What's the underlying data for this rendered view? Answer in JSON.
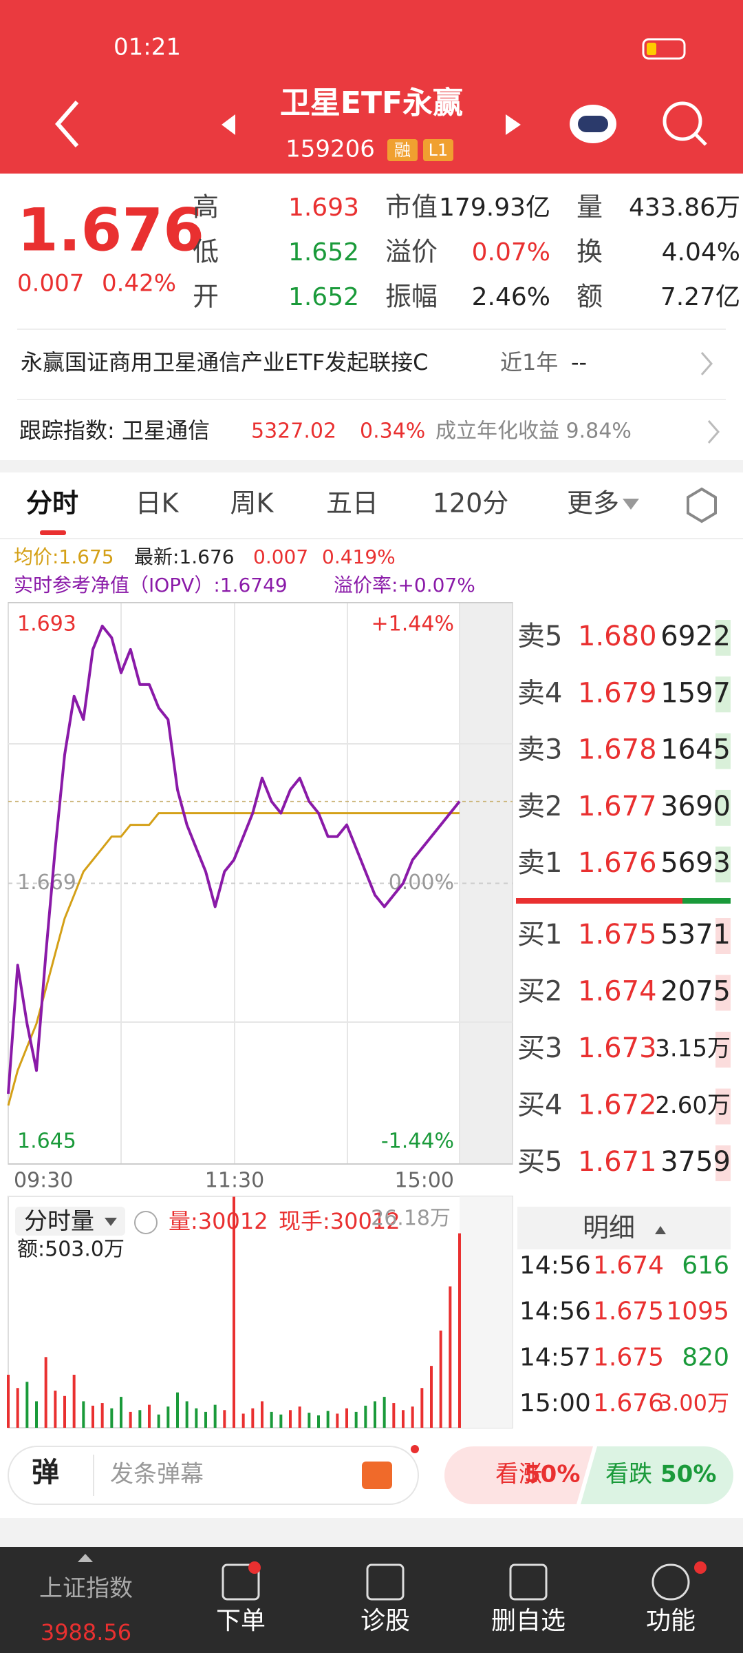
{
  "status": {
    "time": "01:21"
  },
  "header": {
    "title": "卫星ETF永赢",
    "code": "159206",
    "badges": [
      "融",
      "L1"
    ]
  },
  "quote": {
    "price": "1.676",
    "change": "0.007",
    "change_pct": "0.42%",
    "stats": [
      {
        "label": "高",
        "value": "1.693",
        "color": "#e93030"
      },
      {
        "label": "市值",
        "value": "179.93亿",
        "color": "#222222"
      },
      {
        "label": "量",
        "value": "433.86万",
        "color": "#222222"
      },
      {
        "label": "低",
        "value": "1.652",
        "color": "#1a9a3a"
      },
      {
        "label": "溢价",
        "value": "0.07%",
        "color": "#e93030"
      },
      {
        "label": "换",
        "value": "4.04%",
        "color": "#222222"
      },
      {
        "label": "开",
        "value": "1.652",
        "color": "#1a9a3a"
      },
      {
        "label": "振幅",
        "value": "2.46%",
        "color": "#222222"
      },
      {
        "label": "额",
        "value": "7.27亿",
        "color": "#222222"
      }
    ]
  },
  "fund": {
    "name": "永赢国证商用卫星通信产业ETF发起联接C",
    "period": "近1年",
    "value": "--"
  },
  "index": {
    "label": "跟踪指数: 卫星通信",
    "value": "5327.02",
    "pct": "0.34%",
    "note": "成立年化收益 9.84%"
  },
  "tabs": [
    "分时",
    "日K",
    "周K",
    "五日",
    "120分",
    "更多"
  ],
  "legend": {
    "avg": "均价:1.675",
    "latest": "最新:1.676",
    "chg": "0.007",
    "pct": "0.419%",
    "iopv": "实时参考净值（IOPV）:1.6749",
    "premium": "溢价率:+0.07%"
  },
  "chart": {
    "ylim": [
      1.645,
      1.693
    ],
    "yticks": [
      {
        "value": 1.693,
        "label": "1.693"
      },
      {
        "value": 1.669,
        "label": "1.669"
      },
      {
        "value": 1.645,
        "label": "1.645"
      }
    ],
    "pct_labels": [
      "+1.44%",
      "0.00%",
      "-1.44%"
    ],
    "times": [
      "09:30",
      "11:30",
      "15:00"
    ],
    "price": [
      1.651,
      1.662,
      1.657,
      1.653,
      1.663,
      1.672,
      1.68,
      1.685,
      1.683,
      1.689,
      1.691,
      1.69,
      1.687,
      1.689,
      1.686,
      1.686,
      1.684,
      1.683,
      1.677,
      1.674,
      1.672,
      1.67,
      1.667,
      1.67,
      1.671,
      1.673,
      1.675,
      1.678,
      1.676,
      1.675,
      1.677,
      1.678,
      1.676,
      1.675,
      1.673,
      1.673,
      1.674,
      1.672,
      1.67,
      1.668,
      1.667,
      1.668,
      1.669,
      1.671,
      1.672,
      1.673,
      1.674,
      1.675,
      1.676
    ],
    "avg": [
      1.65,
      1.653,
      1.655,
      1.657,
      1.66,
      1.663,
      1.666,
      1.668,
      1.67,
      1.671,
      1.672,
      1.673,
      1.673,
      1.674,
      1.674,
      1.674,
      1.675,
      1.675,
      1.675,
      1.675,
      1.675,
      1.675,
      1.675,
      1.675,
      1.675,
      1.675,
      1.675,
      1.675,
      1.675,
      1.675,
      1.675,
      1.675,
      1.675,
      1.675,
      1.675,
      1.675,
      1.675,
      1.675,
      1.675,
      1.675,
      1.675,
      1.675,
      1.675,
      1.675,
      1.675,
      1.675,
      1.675,
      1.675,
      1.675
    ]
  },
  "order_book": {
    "asks": [
      {
        "label": "卖5",
        "price": "1.680",
        "qty": "6922"
      },
      {
        "label": "卖4",
        "price": "1.679",
        "qty": "1597"
      },
      {
        "label": "卖3",
        "price": "1.678",
        "qty": "1645"
      },
      {
        "label": "卖2",
        "price": "1.677",
        "qty": "3690"
      },
      {
        "label": "卖1",
        "price": "1.676",
        "qty": "5693"
      }
    ],
    "bids": [
      {
        "label": "买1",
        "price": "1.675",
        "qty": "5371"
      },
      {
        "label": "买2",
        "price": "1.674",
        "qty": "2075"
      },
      {
        "label": "买3",
        "price": "1.673",
        "qty": "3.15万"
      },
      {
        "label": "买4",
        "price": "1.672",
        "qty": "2.60万"
      },
      {
        "label": "买5",
        "price": "1.671",
        "qty": "3759"
      }
    ]
  },
  "volume": {
    "label": "分时量",
    "vol": "量:30012",
    "hand": "现手:30012",
    "amount": "额:503.0万",
    "ylim": [
      0,
      261800
    ],
    "yticks": [
      {
        "value": 261800,
        "label": "26.18万"
      }
    ],
    "values": [
      60000,
      45000,
      52000,
      30000,
      80000,
      42000,
      36000,
      60000,
      30000,
      25000,
      28000,
      22000,
      35000,
      18000,
      20000,
      26000,
      15000,
      24000,
      40000,
      30000,
      22000,
      18000,
      26000,
      20000,
      261800,
      16000,
      22000,
      30000,
      18000,
      15000,
      20000,
      24000,
      17000,
      14000,
      19000,
      16000,
      22000,
      18000,
      25000,
      30000,
      35000,
      28000,
      20000,
      24000,
      45000,
      70000,
      110000,
      160000,
      220000
    ]
  },
  "trades": {
    "title": "明细",
    "rows": [
      {
        "time": "14:56",
        "price": "1.674",
        "volume": "616",
        "color": "#1a9a3a"
      },
      {
        "time": "14:56",
        "price": "1.675",
        "volume": "1095",
        "color": "#e93030"
      },
      {
        "time": "14:57",
        "price": "1.675",
        "volume": "820",
        "color": "#1a9a3a"
      },
      {
        "time": "15:00",
        "price": "1.676",
        "volume": "3.00万",
        "color": "#e93030"
      }
    ]
  },
  "danmaku": {
    "icon": "弹",
    "placeholder": "发条弹幕",
    "up": "看涨",
    "up_pct": "50%",
    "down": "看跌",
    "down_pct": "50%"
  },
  "nav": {
    "index": "上证指数",
    "index_value": "3988.56",
    "items": [
      "下单",
      "诊股",
      "删自选",
      "功能"
    ]
  }
}
